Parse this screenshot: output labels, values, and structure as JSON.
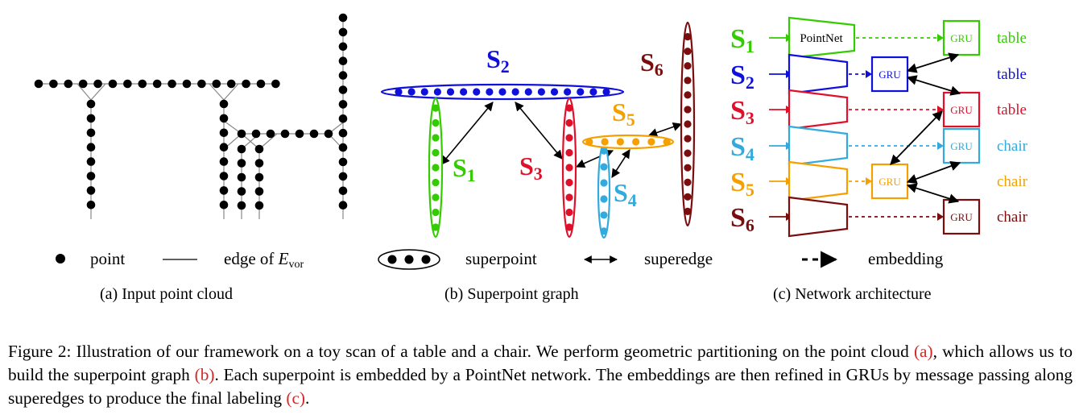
{
  "colors": {
    "s1": "#33cc00",
    "s2": "#1010dd",
    "s3": "#e0102a",
    "s4": "#33aadd",
    "s5": "#f5a000",
    "s6": "#7a0d0d",
    "ref": "#d62728"
  },
  "panel_a": {
    "legend_point": "point",
    "legend_edge": "edge of ",
    "legend_edge_symbol": "E",
    "legend_edge_sub": "vor",
    "caption": "(a) Input point cloud"
  },
  "panel_b": {
    "superpoints": [
      {
        "letter": "S",
        "index": "1"
      },
      {
        "letter": "S",
        "index": "2"
      },
      {
        "letter": "S",
        "index": "3"
      },
      {
        "letter": "S",
        "index": "4"
      },
      {
        "letter": "S",
        "index": "5"
      },
      {
        "letter": "S",
        "index": "6"
      }
    ],
    "legend_superpoint": "superpoint",
    "legend_superedge": "superedge",
    "caption": "(b) Superpoint graph"
  },
  "panel_c": {
    "rows": [
      {
        "letter": "S",
        "index": "1",
        "label": "table"
      },
      {
        "letter": "S",
        "index": "2",
        "label": "table"
      },
      {
        "letter": "S",
        "index": "3",
        "label": "table"
      },
      {
        "letter": "S",
        "index": "4",
        "label": "chair"
      },
      {
        "letter": "S",
        "index": "5",
        "label": "chair"
      },
      {
        "letter": "S",
        "index": "6",
        "label": "chair"
      }
    ],
    "pointnet_label": "PointNet",
    "gru_label": "GRU",
    "legend_embedding": "embedding",
    "caption": "(c) Network architecture"
  },
  "caption": {
    "part1": "Figure 2: Illustration of our framework on a toy scan of a table and a chair. We perform geometric partitioning on the point cloud ",
    "ref_a": "(a)",
    "part2": ", which allows us to build the superpoint graph ",
    "ref_b": "(b)",
    "part3": ". Each superpoint is embedded by a PointNet network. The embeddings are then refined in GRUs by message passing along superedges to produce the final labeling ",
    "ref_c": "(c)",
    "part4": "."
  }
}
